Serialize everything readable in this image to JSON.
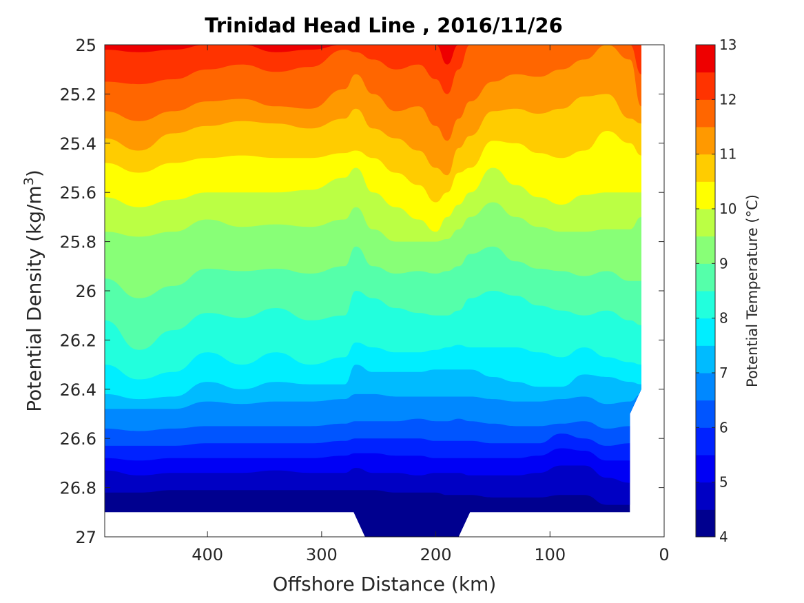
{
  "chart_data": {
    "type": "contourf",
    "title": "Trinidad Head Line , 2016/11/26",
    "xlabel": "Offshore Distance (km)",
    "ylabel_main": "Potential Density (kg/m",
    "ylabel_sup": "3",
    "ylabel_close": ")",
    "xlim": [
      490,
      0
    ],
    "x_reversed": true,
    "xticks": [
      400,
      300,
      200,
      100,
      0
    ],
    "xtick_labels": [
      "400",
      "300",
      "200",
      "100",
      "0"
    ],
    "ylim": [
      25,
      27
    ],
    "y_reversed": true,
    "yticks": [
      25,
      25.2,
      25.4,
      25.6,
      25.8,
      26,
      26.2,
      26.4,
      26.6,
      26.8,
      27
    ],
    "ytick_labels": [
      "25",
      "25.2",
      "25.4",
      "25.6",
      "25.8",
      "26",
      "26.2",
      "26.4",
      "26.6",
      "26.8",
      "27"
    ],
    "colorbar": {
      "label": "Potential Temperature (°C)",
      "range": [
        4,
        13
      ],
      "ticks": [
        4,
        5,
        6,
        7,
        8,
        9,
        10,
        11,
        12,
        13
      ],
      "tick_labels": [
        "4",
        "5",
        "6",
        "7",
        "8",
        "9",
        "10",
        "11",
        "12",
        "13"
      ],
      "levels": [
        4,
        4.5,
        5,
        5.5,
        6,
        6.5,
        7,
        7.5,
        8,
        8.5,
        9,
        9.5,
        10,
        10.5,
        11,
        11.5,
        12,
        12.5,
        13
      ],
      "colors": [
        "#00008f",
        "#0000c4",
        "#0000f5",
        "#0022ff",
        "#0055ff",
        "#0088ff",
        "#00bbff",
        "#00eeff",
        "#22ffdd",
        "#55ffaa",
        "#88ff77",
        "#bbff44",
        "#ffff00",
        "#ffcc00",
        "#ff9900",
        "#ff6600",
        "#ff3300",
        "#ee0000",
        "#b30000"
      ]
    },
    "sections_km": [
      490,
      460,
      430,
      400,
      370,
      340,
      310,
      280,
      270,
      255,
      235,
      215,
      200,
      190,
      180,
      170,
      150,
      130,
      110,
      90,
      70,
      50,
      30,
      20
    ],
    "isopycnal_depth_of_temperature": [
      {
        "temp": 12.5,
        "density": [
          25.02,
          25.03,
          25.02,
          25.0,
          25.0,
          25.03,
          25.02,
          25.0,
          25.0,
          25.0,
          25.0,
          25.0,
          25.0,
          25.08,
          25.0,
          25.0,
          25.0,
          25.0,
          25.0,
          25.0,
          25.0,
          25.0,
          25.0,
          25.0
        ]
      },
      {
        "temp": 12.0,
        "density": [
          25.15,
          25.16,
          25.14,
          25.1,
          25.08,
          25.11,
          25.09,
          25.02,
          25.03,
          25.06,
          25.1,
          25.08,
          25.14,
          25.2,
          25.1,
          25.0,
          25.0,
          25.0,
          25.0,
          25.0,
          25.0,
          25.0,
          25.0,
          25.12
        ]
      },
      {
        "temp": 11.5,
        "density": [
          25.27,
          25.31,
          25.27,
          25.23,
          25.22,
          25.25,
          25.26,
          25.18,
          25.12,
          25.2,
          25.27,
          25.25,
          25.33,
          25.39,
          25.3,
          25.23,
          25.15,
          25.12,
          25.13,
          25.1,
          25.06,
          25.0,
          25.06,
          25.25
        ]
      },
      {
        "temp": 11.0,
        "density": [
          25.38,
          25.43,
          25.36,
          25.33,
          25.31,
          25.32,
          25.34,
          25.3,
          25.26,
          25.34,
          25.38,
          25.43,
          25.5,
          25.53,
          25.42,
          25.37,
          25.27,
          25.26,
          25.28,
          25.26,
          25.21,
          25.2,
          25.3,
          25.32
        ]
      },
      {
        "temp": 10.5,
        "density": [
          25.48,
          25.52,
          25.48,
          25.46,
          25.45,
          25.46,
          25.46,
          25.44,
          25.43,
          25.46,
          25.52,
          25.57,
          25.64,
          25.6,
          25.52,
          25.5,
          25.39,
          25.4,
          25.44,
          25.46,
          25.43,
          25.35,
          25.4,
          25.45
        ]
      },
      {
        "temp": 10.0,
        "density": [
          25.62,
          25.66,
          25.63,
          25.6,
          25.6,
          25.6,
          25.59,
          25.54,
          25.5,
          25.6,
          25.66,
          25.71,
          25.76,
          25.7,
          25.65,
          25.6,
          25.5,
          25.57,
          25.62,
          25.65,
          25.61,
          25.6,
          25.6,
          25.6
        ]
      },
      {
        "temp": 9.5,
        "density": [
          25.76,
          25.78,
          25.76,
          25.71,
          25.74,
          25.73,
          25.74,
          25.71,
          25.66,
          25.75,
          25.8,
          25.8,
          25.8,
          25.79,
          25.75,
          25.7,
          25.64,
          25.7,
          25.74,
          25.76,
          25.76,
          25.75,
          25.75,
          25.7
        ]
      },
      {
        "temp": 9.0,
        "density": [
          25.95,
          26.03,
          25.98,
          25.91,
          25.92,
          25.91,
          25.93,
          25.9,
          25.82,
          25.9,
          25.93,
          25.92,
          25.93,
          25.92,
          25.9,
          25.85,
          25.82,
          25.88,
          25.91,
          25.92,
          25.94,
          25.92,
          25.96,
          25.96
        ]
      },
      {
        "temp": 8.5,
        "density": [
          26.12,
          26.24,
          26.16,
          26.09,
          26.11,
          26.07,
          26.12,
          26.1,
          26.0,
          26.03,
          26.07,
          26.09,
          26.1,
          26.1,
          26.08,
          26.03,
          26.0,
          26.02,
          26.06,
          26.08,
          26.1,
          26.08,
          26.12,
          26.14
        ]
      },
      {
        "temp": 8.0,
        "density": [
          26.3,
          26.36,
          26.33,
          26.25,
          26.3,
          26.25,
          26.3,
          26.27,
          26.21,
          26.23,
          26.25,
          26.25,
          26.24,
          26.23,
          26.22,
          26.23,
          26.23,
          26.23,
          26.25,
          26.27,
          26.23,
          26.27,
          26.29,
          26.3
        ]
      },
      {
        "temp": 7.5,
        "density": [
          26.42,
          26.44,
          26.43,
          26.37,
          26.4,
          26.37,
          26.38,
          26.38,
          26.3,
          26.33,
          26.33,
          26.33,
          26.32,
          26.32,
          26.32,
          26.32,
          26.35,
          26.37,
          26.39,
          26.39,
          26.34,
          26.35,
          26.37,
          26.38
        ]
      },
      {
        "temp": 7.0,
        "density": [
          26.48,
          26.48,
          26.48,
          26.45,
          26.46,
          26.45,
          26.45,
          26.44,
          26.42,
          26.42,
          26.43,
          26.43,
          26.43,
          26.43,
          26.43,
          26.43,
          26.44,
          26.45,
          26.45,
          26.44,
          26.43,
          26.46,
          26.45,
          26.42
        ]
      },
      {
        "temp": 6.5,
        "density": [
          26.56,
          26.57,
          26.56,
          26.55,
          26.55,
          26.55,
          26.55,
          26.54,
          26.53,
          26.53,
          26.53,
          26.52,
          26.53,
          26.53,
          26.52,
          26.53,
          26.54,
          26.55,
          26.55,
          26.54,
          26.53,
          26.56,
          26.55,
          26.5
        ]
      },
      {
        "temp": 6.0,
        "density": [
          26.63,
          26.63,
          26.63,
          26.62,
          26.62,
          26.62,
          26.62,
          26.61,
          26.6,
          26.6,
          26.6,
          26.6,
          26.61,
          26.61,
          26.61,
          26.61,
          26.62,
          26.62,
          26.62,
          26.58,
          26.6,
          26.63,
          26.62,
          26.6
        ]
      },
      {
        "temp": 5.5,
        "density": [
          26.68,
          26.69,
          26.68,
          26.68,
          26.68,
          26.68,
          26.68,
          26.67,
          26.66,
          26.66,
          26.67,
          26.67,
          26.68,
          26.68,
          26.68,
          26.68,
          26.68,
          26.68,
          26.67,
          26.64,
          26.65,
          26.69,
          26.69,
          26.68
        ]
      },
      {
        "temp": 5.0,
        "density": [
          26.73,
          26.75,
          26.74,
          26.74,
          26.74,
          26.73,
          26.74,
          26.74,
          26.72,
          26.74,
          26.74,
          26.75,
          26.74,
          26.74,
          26.74,
          26.75,
          26.75,
          26.75,
          26.74,
          26.71,
          26.71,
          26.76,
          26.78,
          26.77
        ]
      },
      {
        "temp": 4.5,
        "density": [
          26.82,
          26.82,
          26.81,
          26.81,
          26.81,
          26.81,
          26.81,
          26.81,
          26.81,
          26.81,
          26.82,
          26.82,
          26.82,
          26.83,
          26.83,
          26.83,
          26.84,
          26.84,
          26.84,
          26.83,
          26.83,
          26.87,
          26.87,
          26.87
        ]
      }
    ],
    "data_bottom_boundary": [
      {
        "x": 490,
        "y": 26.9
      },
      {
        "x": 272,
        "y": 26.9
      },
      {
        "x": 262,
        "y": 27.0
      },
      {
        "x": 180,
        "y": 27.0
      },
      {
        "x": 170,
        "y": 26.9
      },
      {
        "x": 30,
        "y": 26.9
      }
    ],
    "data_right_boundary": [
      {
        "x": 30,
        "y": 26.9
      },
      {
        "x": 30,
        "y": 26.5
      },
      {
        "x": 20,
        "y": 26.4
      },
      {
        "x": 20,
        "y": 25.0
      }
    ]
  }
}
